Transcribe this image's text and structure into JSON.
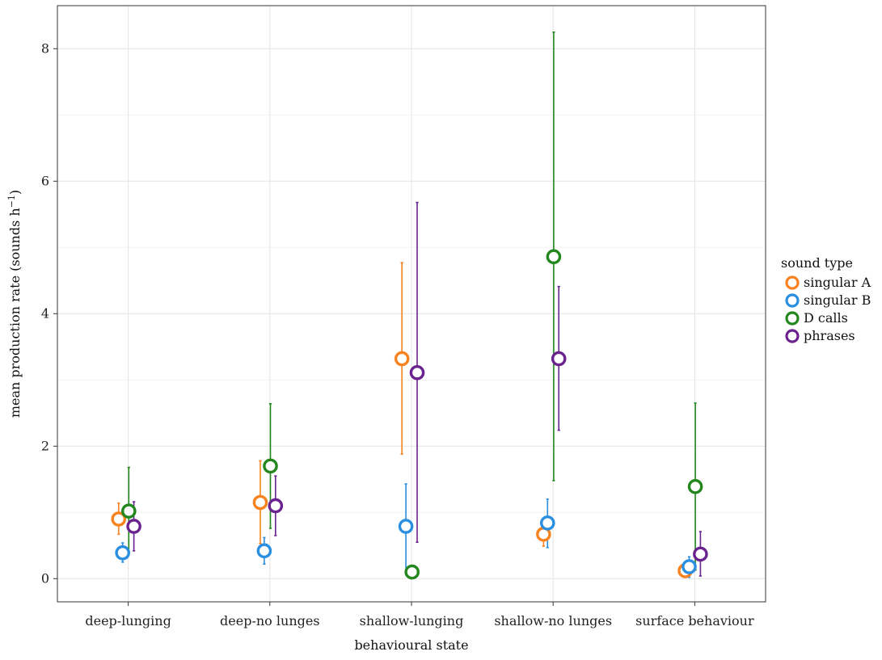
{
  "chart_data": {
    "type": "scatter",
    "title": "",
    "xlabel": "behavioural state",
    "ylabel_main": "mean production rate (sounds h",
    "ylabel_sup": "−1",
    "ylabel_close": ")",
    "categories": [
      "deep-lunging",
      "deep-no lunges",
      "shallow-lunging",
      "shallow-no lunges",
      "surface behaviour"
    ],
    "ylim": [
      -0.35,
      8.65
    ],
    "yticks": [
      0,
      2,
      4,
      6,
      8
    ],
    "grid": true,
    "legend": {
      "title": "sound type",
      "position": "right"
    },
    "series": [
      {
        "name": "singular A",
        "color": "#f7821e",
        "values": [
          0.9,
          1.15,
          3.32,
          0.67,
          0.12
        ],
        "lower": [
          0.67,
          0.53,
          1.88,
          0.49,
          0.03
        ],
        "upper": [
          1.14,
          1.78,
          4.77,
          0.86,
          0.22
        ]
      },
      {
        "name": "singular B",
        "color": "#2a8fe0",
        "values": [
          0.39,
          0.42,
          0.79,
          0.84,
          0.18
        ],
        "lower": [
          0.25,
          0.22,
          0.08,
          0.47,
          0.02
        ],
        "upper": [
          0.54,
          0.62,
          1.43,
          1.2,
          0.33
        ]
      },
      {
        "name": "D calls",
        "color": "#23871e",
        "values": [
          1.02,
          1.7,
          0.1,
          4.86,
          1.39
        ],
        "lower": [
          0.4,
          0.76,
          0.03,
          1.48,
          0.13
        ],
        "upper": [
          1.68,
          2.64,
          0.18,
          8.25,
          2.65
        ]
      },
      {
        "name": "phrases",
        "color": "#6a238e",
        "values": [
          0.79,
          1.1,
          3.11,
          3.32,
          0.37
        ],
        "lower": [
          0.42,
          0.65,
          0.55,
          2.24,
          0.04
        ],
        "upper": [
          1.16,
          1.55,
          5.68,
          4.41,
          0.71
        ]
      }
    ]
  }
}
